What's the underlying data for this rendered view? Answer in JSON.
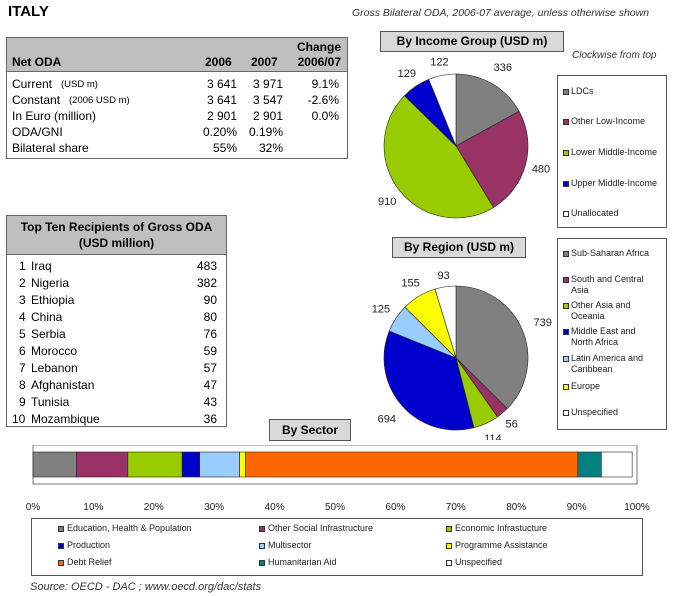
{
  "header": {
    "country": "ITALY",
    "subtitle": "Gross Bilateral ODA, 2006-07 average, unless otherwise shown",
    "clockwise_note": "Clockwise from top"
  },
  "net_oda": {
    "headers": {
      "label": "Net ODA",
      "y2006": "2006",
      "y2007": "2007",
      "change_line1": "Change",
      "change_line2": "2006/07"
    },
    "rows": [
      {
        "label": "Current",
        "unit": "(USD m)",
        "v2006": "3 641",
        "v2007": "3 971",
        "change": "9.1%"
      },
      {
        "label": "Constant",
        "unit": "(2006 USD m)",
        "v2006": "3 641",
        "v2007": "3 547",
        "change": "-2.6%"
      },
      {
        "label": "In Euro (million)",
        "unit": "",
        "v2006": "2 901",
        "v2007": "2 901",
        "change": "0.0%"
      },
      {
        "label": "ODA/GNI",
        "unit": "",
        "v2006": "0.20%",
        "v2007": "0.19%",
        "change": ""
      },
      {
        "label": "Bilateral share",
        "unit": "",
        "v2006": "55%",
        "v2007": "32%",
        "change": ""
      }
    ]
  },
  "top_ten": {
    "title_line1": "Top Ten Recipients of Gross ODA",
    "title_line2": "(USD million)",
    "rows": [
      {
        "rank": "1",
        "name": "Iraq",
        "value": "483"
      },
      {
        "rank": "2",
        "name": "Nigeria",
        "value": "382"
      },
      {
        "rank": "3",
        "name": "Ethiopia",
        "value": "90"
      },
      {
        "rank": "4",
        "name": "China",
        "value": "80"
      },
      {
        "rank": "5",
        "name": "Serbia",
        "value": "76"
      },
      {
        "rank": "6",
        "name": "Morocco",
        "value": "59"
      },
      {
        "rank": "7",
        "name": "Lebanon",
        "value": "57"
      },
      {
        "rank": "8",
        "name": "Afghanistan",
        "value": "47"
      },
      {
        "rank": "9",
        "name": "Tunisia",
        "value": "43"
      },
      {
        "rank": "10",
        "name": "Mozambique",
        "value": "36"
      }
    ]
  },
  "chart_data": [
    {
      "type": "pie",
      "title": "By Income Group (USD m)",
      "categories": [
        "LDCs",
        "Other Low-Income",
        "Lower Middle-Income",
        "Upper Middle-Income",
        "Unallocated"
      ],
      "values": [
        336,
        480,
        910,
        129,
        122
      ],
      "colors": [
        "#808080",
        "#993366",
        "#99cc00",
        "#0000cc",
        "#ffffff"
      ],
      "legend": "right"
    },
    {
      "type": "pie",
      "title": "By Region (USD m)",
      "categories": [
        "Sub-Saharan Africa",
        "South and Central Asia",
        "Other Asia and Oceania",
        "Middle East and North Africa",
        "Latin America and Caribbean",
        "Europe",
        "Unspecified"
      ],
      "legend_lines": [
        [
          "Sub-Saharan Africa"
        ],
        [
          "South and Central",
          "Asia"
        ],
        [
          "Other Asia and",
          "Oceania"
        ],
        [
          "Middle East and",
          "North Africa"
        ],
        [
          "Latin America and",
          "Caribbean"
        ],
        [
          "Europe"
        ],
        [
          "Unspecified"
        ]
      ],
      "values": [
        739,
        56,
        114,
        694,
        125,
        155,
        93
      ],
      "colors": [
        "#808080",
        "#993366",
        "#99cc00",
        "#0000cc",
        "#99ccff",
        "#ffff00",
        "#ffffff"
      ],
      "legend": "right"
    },
    {
      "type": "bar",
      "orientation": "horizontal-stacked",
      "title": "By Sector",
      "categories": [
        "Education, Health & Population",
        "Other Social Infrastructure",
        "Economic Infrastucture",
        "Production",
        "Multisector",
        "Programme Assistance",
        "Debt Relief",
        "Humanitarian Aid",
        "Unspecified"
      ],
      "values": [
        7.2,
        8.5,
        9.0,
        2.9,
        6.6,
        1.0,
        55.0,
        3.9,
        5.1
      ],
      "colors": [
        "#808080",
        "#993366",
        "#99cc00",
        "#0000cc",
        "#99ccff",
        "#ffff00",
        "#ff6600",
        "#008080",
        "#ffffff"
      ],
      "xlim": [
        0,
        100
      ],
      "ticks": [
        "0%",
        "10%",
        "20%",
        "30%",
        "40%",
        "50%",
        "60%",
        "70%",
        "80%",
        "90%",
        "100%"
      ],
      "legend": "bottom"
    }
  ],
  "source": "Source:  OECD - DAC ; www.oecd.org/dac/stats"
}
